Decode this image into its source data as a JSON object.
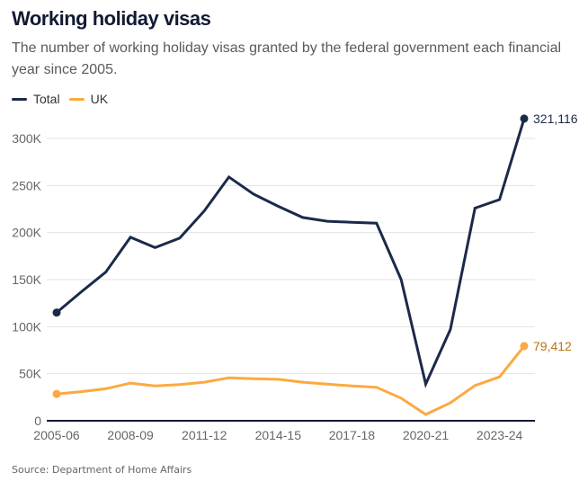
{
  "header": {
    "title": "Working holiday visas",
    "subtitle": "The number of working holiday visas granted by the federal government each financial year since 2005."
  },
  "footer": {
    "source": "Source: Department of Home Affairs"
  },
  "colors": {
    "total": "#1b2a4a",
    "uk": "#fca941",
    "uk_label": "#b8731a",
    "grid": "#e3e3e3",
    "axis": "#121a33"
  },
  "chart_data": {
    "type": "line",
    "title": "Working holiday visas",
    "subtitle": "The number of working holiday visas granted by the federal government each financial year since 2005.",
    "xlabel": "",
    "ylabel": "",
    "ylim": [
      0,
      320000
    ],
    "grid": true,
    "legend_position": "top-left",
    "x": [
      "2005-06",
      "2006-07",
      "2007-08",
      "2008-09",
      "2009-10",
      "2010-11",
      "2011-12",
      "2012-13",
      "2013-14",
      "2014-15",
      "2015-16",
      "2016-17",
      "2017-18",
      "2018-19",
      "2019-20",
      "2020-21",
      "2021-22",
      "2022-23",
      "2023-24",
      "2024-25"
    ],
    "x_tick_labels": [
      "2005-06",
      "2008-09",
      "2011-12",
      "2014-15",
      "2017-18",
      "2020-21",
      "2023-24"
    ],
    "y_ticks": [
      0,
      50000,
      100000,
      150000,
      200000,
      250000,
      300000
    ],
    "y_tick_labels": [
      "0",
      "50K",
      "100K",
      "150K",
      "200K",
      "250K",
      "300K"
    ],
    "series": [
      {
        "name": "Total",
        "values": [
          115000,
          137000,
          158000,
          195000,
          184000,
          194000,
          223000,
          259000,
          241000,
          228000,
          216000,
          212000,
          211000,
          210000,
          150000,
          39000,
          97000,
          226000,
          235000,
          321116
        ],
        "end_label": "321,116"
      },
      {
        "name": "UK",
        "values": [
          28500,
          31000,
          34000,
          40000,
          37000,
          38500,
          41000,
          45700,
          44700,
          44000,
          41000,
          39000,
          37000,
          35500,
          24000,
          6700,
          19000,
          37500,
          46600,
          79412
        ],
        "end_label": "79,412"
      }
    ]
  }
}
